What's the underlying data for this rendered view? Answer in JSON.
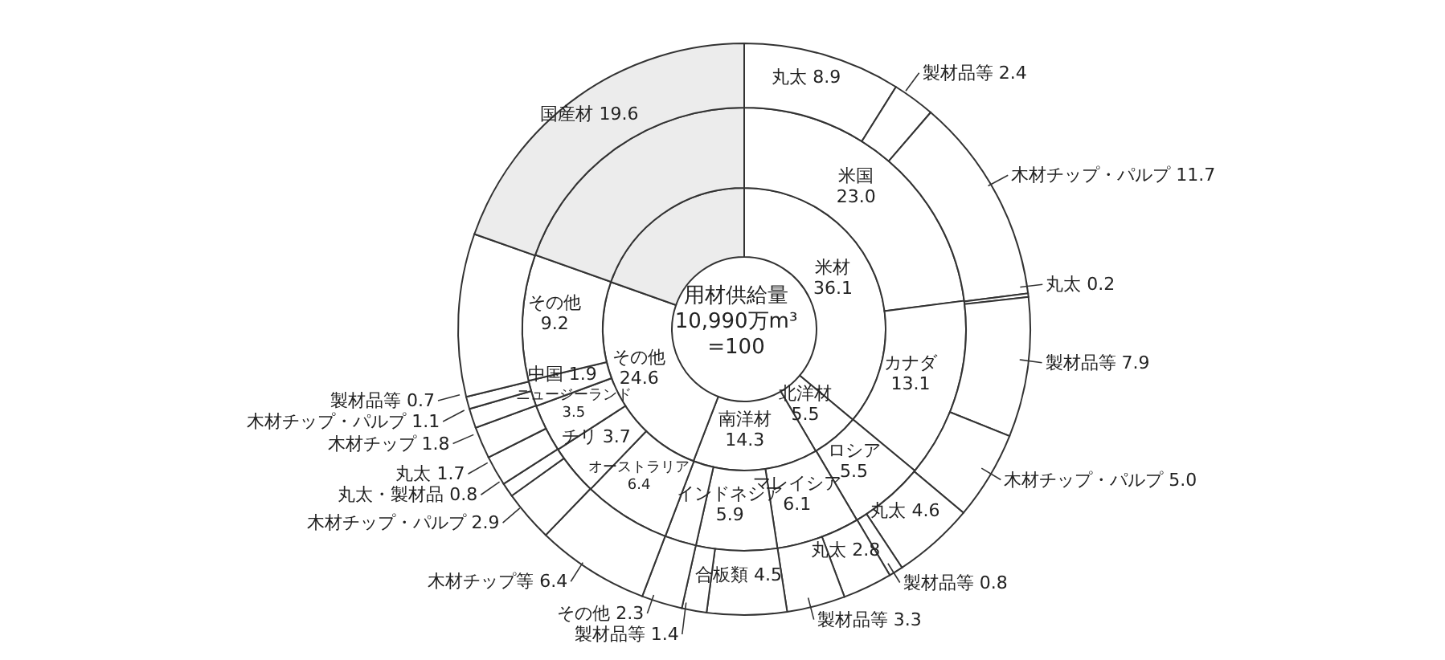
{
  "chart_data": [
    {
      "type": "donut",
      "title": "用材供給量\n10,990万m³\n=100",
      "categories": [
        "米材",
        "北洋材",
        "南洋材",
        "その他",
        null
      ],
      "values": [
        36.1,
        5.5,
        14.3,
        24.6,
        19.6
      ],
      "value_labels": [
        "36.1",
        "5.5",
        "14.3",
        "24.6",
        null
      ],
      "colors": [
        "#ffffff",
        "#ffffff",
        "#ffffff",
        "#ffffff",
        "#ececec"
      ]
    },
    {
      "type": "donut",
      "categories": [
        "米国",
        "カナダ",
        "ロシア",
        "マレイシア",
        "インドネシア",
        null,
        "オーストラリア",
        "チリ",
        "ニュージーランド",
        "中国",
        "その他",
        null
      ],
      "values": [
        23.0,
        13.1,
        5.5,
        6.1,
        5.9,
        2.3,
        6.4,
        3.7,
        3.5,
        1.9,
        9.2,
        19.6
      ],
      "value_labels": [
        "23.0",
        "13.1",
        "5.5",
        "6.1",
        "5.9",
        null,
        "6.4",
        "3.7",
        "3.5",
        "1.9",
        "9.2",
        null
      ],
      "colors": [
        "#ffffff",
        "#ffffff",
        "#ffffff",
        "#ffffff",
        "#ffffff",
        "#ffffff",
        "#ffffff",
        "#ffffff",
        "#ffffff",
        "#ffffff",
        "#ffffff",
        "#ececec"
      ]
    },
    {
      "type": "donut",
      "categories": [
        "丸太",
        "製材品等",
        "木材チップ・パルプ",
        "丸太",
        "製材品等",
        "木材チップ・パルプ",
        "丸太",
        "製材品等",
        "丸太",
        "製材品等",
        "合板類",
        "製材品等",
        "その他",
        "木材チップ等",
        "木材チップ・パルプ",
        "丸太・製材品",
        "丸太",
        "木材チップ",
        "木材チップ・パルプ",
        "製材品等",
        null,
        "国産材"
      ],
      "values": [
        8.9,
        2.4,
        11.7,
        0.2,
        7.9,
        5.0,
        4.6,
        0.8,
        2.8,
        3.3,
        4.5,
        1.4,
        2.3,
        6.4,
        2.9,
        0.8,
        1.7,
        1.8,
        1.1,
        0.7,
        9.2,
        19.6
      ],
      "value_labels": [
        "8.9",
        "2.4",
        "11.7",
        "0.2",
        "7.9",
        "5.0",
        "4.6",
        "0.8",
        "2.8",
        "3.3",
        "4.5",
        "1.4",
        "2.3",
        "6.4",
        "2.9",
        "0.8",
        "1.7",
        "1.8",
        "1.1",
        "0.7",
        null,
        "19.6"
      ],
      "colors": [
        "#ffffff",
        "#ffffff",
        "#ffffff",
        "#ffffff",
        "#ffffff",
        "#ffffff",
        "#ffffff",
        "#ffffff",
        "#ffffff",
        "#ffffff",
        "#ffffff",
        "#ffffff",
        "#ffffff",
        "#ffffff",
        "#ffffff",
        "#ffffff",
        "#ffffff",
        "#ffffff",
        "#ffffff",
        "#ffffff",
        "#ffffff",
        "#ececec"
      ]
    }
  ]
}
